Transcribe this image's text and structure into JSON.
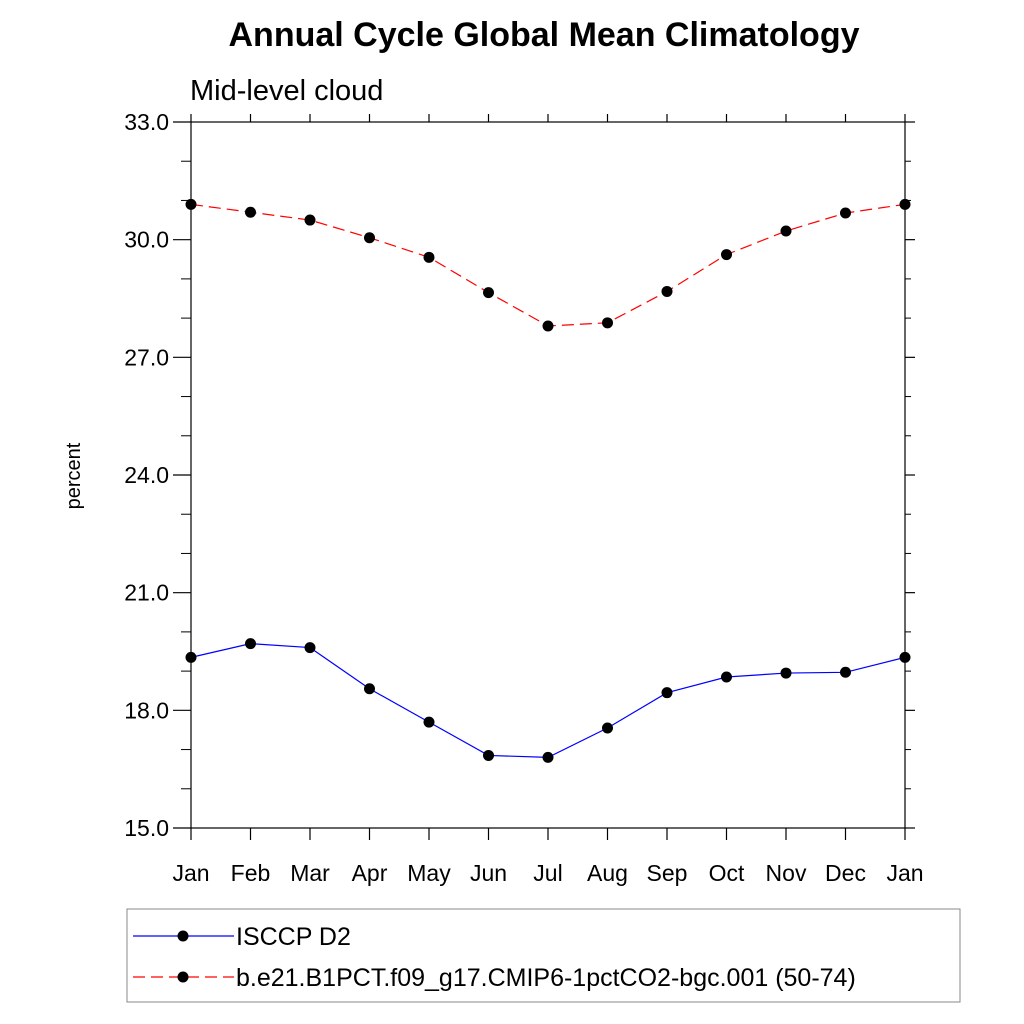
{
  "chart_data": {
    "type": "line",
    "title": "Annual Cycle Global Mean Climatology",
    "subtitle": "Mid-level cloud",
    "xlabel": "",
    "ylabel": "percent",
    "categories": [
      "Jan",
      "Feb",
      "Mar",
      "Apr",
      "May",
      "Jun",
      "Jul",
      "Aug",
      "Sep",
      "Oct",
      "Nov",
      "Dec",
      "Jan"
    ],
    "ylim": [
      15.0,
      33.0
    ],
    "yticks": [
      "15.0",
      "18.0",
      "21.0",
      "24.0",
      "27.0",
      "30.0",
      "33.0"
    ],
    "grid": false,
    "legend_position": "bottom",
    "series": [
      {
        "name": "ISCCP D2",
        "color": "#0000ff",
        "line_style": "solid",
        "marker": "filled-circle",
        "values": [
          19.35,
          19.7,
          19.6,
          18.55,
          17.7,
          16.85,
          16.8,
          17.55,
          18.45,
          18.85,
          18.95,
          18.97,
          19.35
        ]
      },
      {
        "name": "b.e21.B1PCT.f09_g17.CMIP6-1pctCO2-bgc.001 (50-74)",
        "color": "#ff0000",
        "line_style": "dashed",
        "marker": "filled-circle",
        "values": [
          30.9,
          30.7,
          30.5,
          30.05,
          29.55,
          28.65,
          27.8,
          27.88,
          28.68,
          29.62,
          30.22,
          30.68,
          30.9
        ]
      }
    ]
  }
}
